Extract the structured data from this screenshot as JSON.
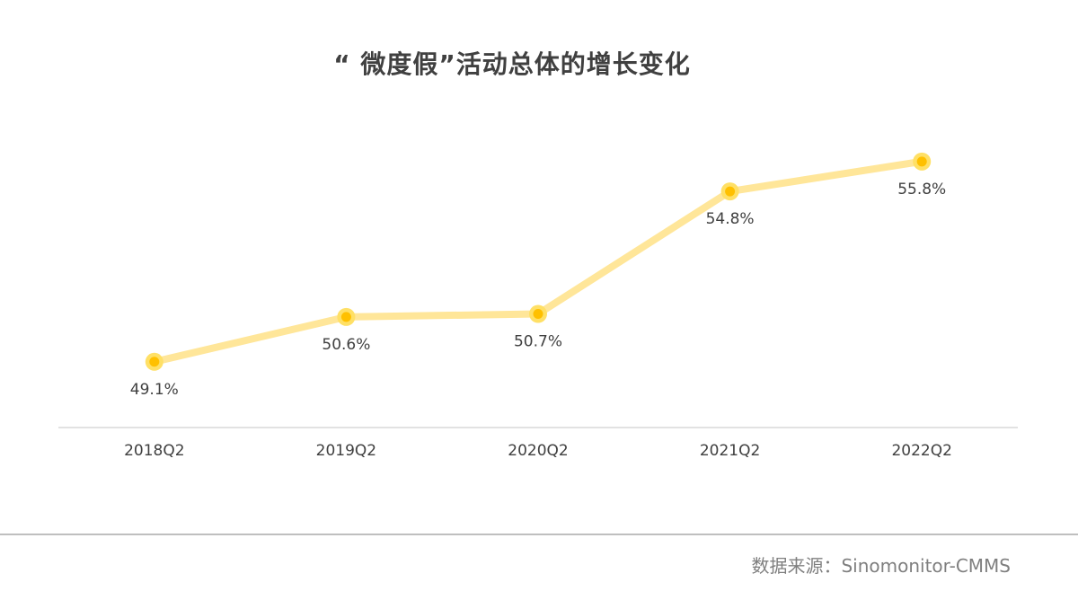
{
  "chart_data": {
    "type": "line",
    "title": "“ 微度假”活动总体的增长变化",
    "categories": [
      "2018Q2",
      "2019Q2",
      "2020Q2",
      "2021Q2",
      "2022Q2"
    ],
    "values": [
      49.1,
      50.6,
      50.7,
      54.8,
      55.8
    ],
    "data_labels": [
      "49.1%",
      "50.6%",
      "50.7%",
      "54.8%",
      "55.8%"
    ],
    "unit": "%",
    "xlabel": "",
    "ylabel": "",
    "ylim": [
      46.9,
      58.8
    ],
    "grid": false,
    "legend": "none",
    "colors": {
      "line": "#ffe699",
      "marker_outer": "#ffe066",
      "marker_inner": "#ffc000",
      "axis": "#d9d9d9",
      "label_text": "#404040"
    }
  },
  "footer": {
    "source": "数据来源：Sinomonitor-CMMS"
  }
}
